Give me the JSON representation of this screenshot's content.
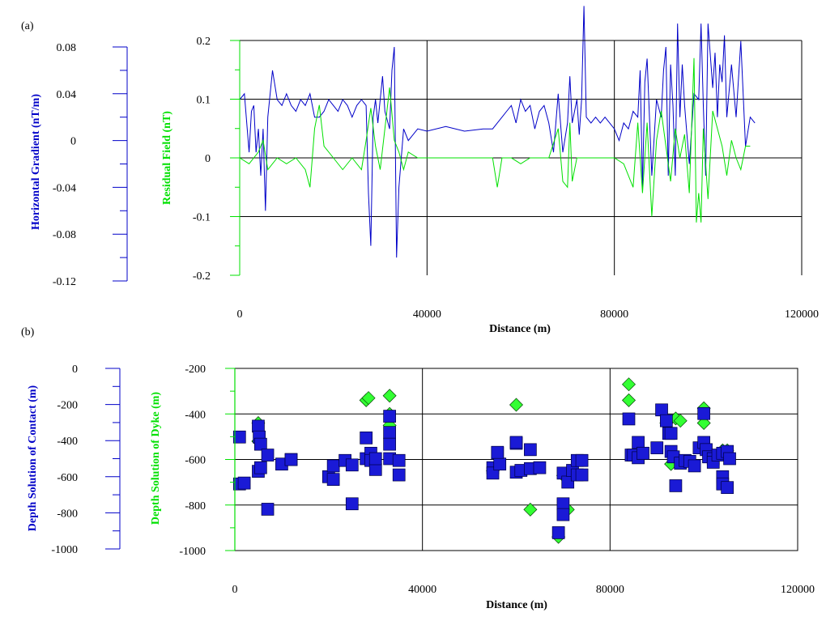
{
  "colors": {
    "blue": "#0000c8",
    "green": "#00e000",
    "marker_blue": "#1a1ad6",
    "marker_green": "#33ff33",
    "grid": "#000000"
  },
  "chart_data": [
    {
      "type": "line",
      "panel_label": "(a)",
      "xlabel": "Distance (m)",
      "xlim": [
        0,
        120000
      ],
      "x_ticks": [
        "0",
        "40000",
        "80000",
        "120000"
      ],
      "y_left": {
        "label": "Horizontal Gradient (nT/m)",
        "ticks": [
          "0.08",
          "0.04",
          "0",
          "-0.04",
          "-0.08",
          "-0.12"
        ],
        "range": [
          -0.12,
          0.08
        ]
      },
      "y_right": {
        "label": "Residual Field (nT)",
        "ticks": [
          "0.2",
          "0.1",
          "0",
          "-0.1",
          "-0.2"
        ],
        "range": [
          -0.2,
          0.2
        ]
      },
      "grid": true,
      "series": [
        {
          "name": "Horizontal Gradient (nT/m)",
          "axis": "left",
          "x": [
            0,
            1000,
            2000,
            2500,
            3000,
            3500,
            4000,
            4500,
            5000,
            5500,
            6000,
            7000,
            8000,
            9000,
            10000,
            11000,
            12000,
            13000,
            14000,
            15000,
            16000,
            17000,
            18000,
            19000,
            20000,
            21000,
            22000,
            23000,
            24000,
            25000,
            26000,
            27000,
            27500,
            28000,
            28500,
            29000,
            29500,
            30000,
            30500,
            31000,
            32000,
            32500,
            33000,
            33500,
            34000,
            35000,
            36000,
            37000,
            38000,
            40000,
            44000,
            48000,
            52000,
            54000,
            55000,
            56000,
            57000,
            58000,
            59000,
            60000,
            61000,
            62000,
            63000,
            64000,
            65000,
            66000,
            67000,
            68000,
            69000,
            70000,
            70500,
            71000,
            72000,
            72500,
            73000,
            73500,
            74000,
            75000,
            76000,
            77000,
            78000,
            79000,
            80000,
            81000,
            82000,
            83000,
            84000,
            85000,
            85500,
            86000,
            86500,
            87000,
            88000,
            89000,
            90000,
            90500,
            91000,
            91500,
            92000,
            92500,
            93000,
            93500,
            94000,
            94500,
            95000,
            96000,
            97000,
            98000,
            98500,
            99000,
            99500,
            100000,
            101000,
            101500,
            102000,
            102500,
            103000,
            103500,
            104000,
            105000,
            106000,
            107000,
            108000,
            109000,
            110000
          ],
          "values": [
            0.035,
            0.04,
            -0.01,
            0.025,
            0.03,
            -0.01,
            0.01,
            -0.03,
            0.01,
            -0.06,
            0.02,
            0.06,
            0.035,
            0.03,
            0.04,
            0.03,
            0.025,
            0.035,
            0.03,
            0.04,
            0.02,
            0.02,
            0.025,
            0.035,
            0.03,
            0.025,
            0.035,
            0.03,
            0.02,
            0.03,
            0.035,
            0.03,
            -0.045,
            -0.09,
            0.02,
            0.035,
            0.015,
            0.035,
            0.055,
            0.025,
            0.01,
            0.06,
            0.08,
            -0.1,
            -0.04,
            0.01,
            0.0,
            0.005,
            0.01,
            0.008,
            0.012,
            0.008,
            0.01,
            0.01,
            0.015,
            0.02,
            0.025,
            0.03,
            0.015,
            0.035,
            0.025,
            0.03,
            0.01,
            0.025,
            0.03,
            0.015,
            -0.01,
            0.04,
            -0.01,
            0.015,
            0.055,
            0.015,
            0.035,
            0.005,
            0.035,
            0.115,
            0.02,
            0.015,
            0.02,
            0.015,
            0.02,
            0.015,
            0.01,
            0.0,
            0.015,
            0.01,
            0.025,
            0.02,
            0.06,
            -0.04,
            0.05,
            0.07,
            -0.03,
            0.035,
            0.02,
            0.06,
            0.08,
            -0.03,
            0.065,
            0.03,
            -0.03,
            0.1,
            0.02,
            0.065,
            0.03,
            -0.02,
            0.04,
            0.035,
            0.1,
            0.03,
            -0.03,
            0.1,
            0.045,
            0.075,
            0.02,
            0.065,
            0.05,
            0.09,
            0.02,
            0.065,
            0.02,
            0.085,
            -0.005,
            0.02,
            0.015
          ]
        },
        {
          "name": "Residual Field (nT)",
          "axis": "right",
          "x": [
            0,
            2000,
            4000,
            5000,
            6000,
            8000,
            10000,
            12000,
            14000,
            15000,
            16000,
            17000,
            18000,
            20000,
            22000,
            24000,
            26000,
            27000,
            28000,
            29000,
            30000,
            31000,
            32000,
            33000,
            34000,
            35000,
            36000,
            38000,
            40000,
            44000,
            48000,
            50000,
            52000,
            54000,
            55000,
            56000,
            58000,
            60000,
            62000,
            64000,
            66000,
            68000,
            69000,
            70000,
            70500,
            71000,
            72000,
            74000,
            76000,
            78000,
            80000,
            82000,
            84000,
            85000,
            86000,
            87000,
            88000,
            89000,
            90000,
            91000,
            92000,
            93000,
            94000,
            95000,
            96000,
            97000,
            97500,
            98000,
            98500,
            99000,
            100000,
            101000,
            102000,
            103000,
            104000,
            105000,
            106000,
            107000,
            108000,
            109000
          ],
          "values": [
            0.0,
            -0.01,
            0.01,
            0.03,
            -0.02,
            0.0,
            -0.01,
            0.0,
            -0.02,
            -0.05,
            0.05,
            0.09,
            0.02,
            0.0,
            -0.02,
            0.0,
            -0.02,
            0.03,
            0.085,
            0.02,
            -0.02,
            0.05,
            0.12,
            0.03,
            0.01,
            -0.02,
            0.01,
            0.0,
            0.0,
            0.0,
            0.0,
            0.0,
            0.0,
            0.0,
            -0.05,
            0.0,
            0.0,
            -0.01,
            0.0,
            0.0,
            0.0,
            0.05,
            -0.04,
            -0.05,
            0.06,
            -0.04,
            0.0,
            0.0,
            0.0,
            0.0,
            0.0,
            -0.01,
            -0.05,
            0.06,
            -0.06,
            0.06,
            -0.1,
            0.03,
            0.08,
            0.02,
            -0.04,
            0.05,
            0.0,
            0.04,
            -0.06,
            0.17,
            -0.11,
            -0.06,
            -0.11,
            0.05,
            -0.07,
            0.08,
            0.05,
            0.02,
            -0.03,
            0.03,
            0.0,
            -0.02,
            0.02,
            0.02
          ]
        }
      ]
    },
    {
      "type": "scatter",
      "panel_label": "(b)",
      "xlabel": "Distance (m)",
      "xlim": [
        0,
        120000
      ],
      "x_ticks": [
        "0",
        "40000",
        "80000",
        "120000"
      ],
      "y_left": {
        "label": "Depth Solution of Contact (m)",
        "ticks": [
          "0",
          "-200",
          "-400",
          "-600",
          "-800",
          "-1000"
        ],
        "range": [
          -1000,
          0
        ]
      },
      "y_right": {
        "label": "Depth Solution of Dyke (m)",
        "ticks": [
          "-200",
          "-400",
          "-600",
          "-800",
          "-1000"
        ],
        "range": [
          -1000,
          -200
        ]
      },
      "grid": true,
      "series": [
        {
          "name": "Depth Solution of Contact (m)",
          "marker": "square",
          "x": [
            1000,
            1000,
            2000,
            5000,
            5200,
            5500,
            5000,
            5500,
            7000,
            7000,
            10000,
            12000,
            12000,
            20000,
            21000,
            21000,
            23500,
            25000,
            25000,
            28000,
            28000,
            29000,
            29000,
            30000,
            30000,
            33000,
            33000,
            33000,
            33000,
            35000,
            35000,
            55000,
            55000,
            56000,
            56500,
            56000,
            60000,
            60000,
            61000,
            60000,
            63000,
            63000,
            65000,
            69000,
            70000,
            70000,
            70000,
            71000,
            72000,
            73000,
            73000,
            74000,
            74000,
            84000,
            84500,
            85000,
            86000,
            86000,
            87000,
            87000,
            90000,
            91000,
            92000,
            92500,
            93000,
            93000,
            93500,
            94000,
            95000,
            96000,
            97000,
            98000,
            99000,
            100000,
            100000,
            100500,
            101000,
            102000,
            102000,
            103000,
            104000,
            104000,
            104000,
            105000,
            105000,
            105500
          ],
          "values": [
            -380,
            -640,
            -635,
            -320,
            -380,
            -420,
            -570,
            -550,
            -780,
            -480,
            -530,
            -505,
            -505,
            -600,
            -615,
            -540,
            -510,
            -535,
            -750,
            -500,
            -385,
            -470,
            -510,
            -560,
            -500,
            -265,
            -355,
            -420,
            -500,
            -510,
            -590,
            -550,
            -580,
            -470,
            -530,
            -465,
            -415,
            -575,
            -565,
            -410,
            -450,
            -555,
            -550,
            -910,
            -750,
            -810,
            -580,
            -630,
            -565,
            -590,
            -510,
            -510,
            -590,
            -280,
            -480,
            -480,
            -495,
            -410,
            -470,
            -470,
            -440,
            -230,
            -290,
            -360,
            -360,
            -460,
            -490,
            -650,
            -525,
            -510,
            -515,
            -540,
            -440,
            -250,
            -410,
            -450,
            -490,
            -500,
            -520,
            -480,
            -470,
            -600,
            -640,
            -660,
            -460,
            -500
          ]
        },
        {
          "name": "Depth Solution of Dyke (m)",
          "marker": "diamond",
          "x": [
            5000,
            5000,
            28000,
            28500,
            33000,
            33000,
            33000,
            55000,
            60000,
            63000,
            69000,
            70000,
            71000,
            84000,
            84000,
            92000,
            93000,
            94000,
            95000,
            100000,
            100000,
            104000,
            105000
          ],
          "values": [
            -440,
            -520,
            -340,
            -330,
            -320,
            -400,
            -450,
            -650,
            -360,
            -820,
            -940,
            -670,
            -820,
            -270,
            -340,
            -440,
            -620,
            -420,
            -430,
            -375,
            -440,
            -560,
            -560
          ]
        }
      ]
    }
  ]
}
